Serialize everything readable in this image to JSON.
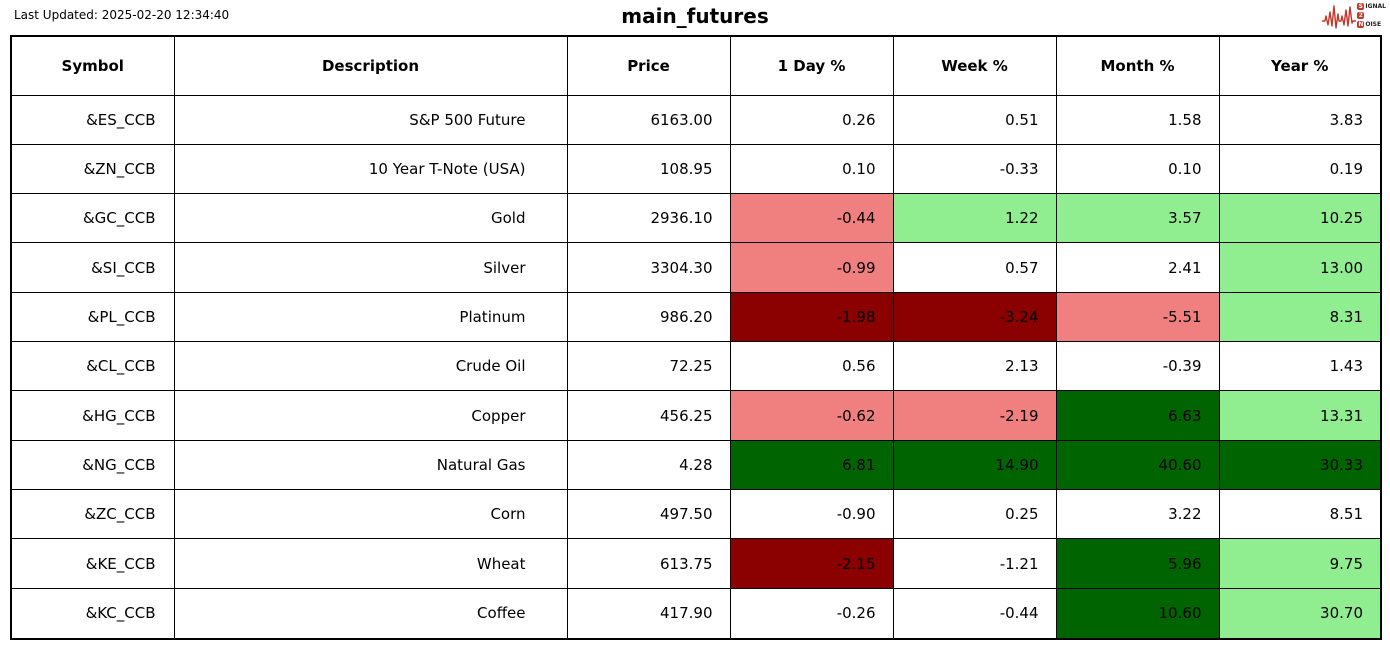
{
  "page": {
    "last_updated": "Last Updated: 2025-02-20 12:34:40",
    "title": "main_futures"
  },
  "logo": {
    "line1_initial": "S",
    "line1_rest": "IGNAL",
    "line2_initial": "2",
    "line2_rest": "",
    "line3_initial": "N",
    "line3_rest": "OISE",
    "accent_color": "#c0392b"
  },
  "chart_data": {
    "type": "table",
    "title": "main_futures",
    "columns": [
      "Symbol",
      "Description",
      "Price",
      "1 Day %",
      "Week %",
      "Month %",
      "Year %"
    ],
    "cell_colors": {
      "white": "#ffffff",
      "light_red": "#f08080",
      "light_green": "#90ee90",
      "dark_red": "#8b0000",
      "dark_green": "#006400"
    },
    "rows": [
      {
        "symbol": "&ES_CCB",
        "description": "S&P 500 Future",
        "price": "6163.00",
        "pcts": [
          {
            "v": "0.26",
            "c": "white"
          },
          {
            "v": "0.51",
            "c": "white"
          },
          {
            "v": "1.58",
            "c": "white"
          },
          {
            "v": "3.83",
            "c": "white"
          }
        ]
      },
      {
        "symbol": "&ZN_CCB",
        "description": "10 Year T-Note (USA)",
        "price": "108.95",
        "pcts": [
          {
            "v": "0.10",
            "c": "white"
          },
          {
            "v": "-0.33",
            "c": "white"
          },
          {
            "v": "0.10",
            "c": "white"
          },
          {
            "v": "0.19",
            "c": "white"
          }
        ]
      },
      {
        "symbol": "&GC_CCB",
        "description": "Gold",
        "price": "2936.10",
        "pcts": [
          {
            "v": "-0.44",
            "c": "light_red"
          },
          {
            "v": "1.22",
            "c": "light_green"
          },
          {
            "v": "3.57",
            "c": "light_green"
          },
          {
            "v": "10.25",
            "c": "light_green"
          }
        ]
      },
      {
        "symbol": "&SI_CCB",
        "description": "Silver",
        "price": "3304.30",
        "pcts": [
          {
            "v": "-0.99",
            "c": "light_red"
          },
          {
            "v": "0.57",
            "c": "white"
          },
          {
            "v": "2.41",
            "c": "white"
          },
          {
            "v": "13.00",
            "c": "light_green"
          }
        ]
      },
      {
        "symbol": "&PL_CCB",
        "description": "Platinum",
        "price": "986.20",
        "pcts": [
          {
            "v": "-1.98",
            "c": "dark_red"
          },
          {
            "v": "-3.24",
            "c": "dark_red"
          },
          {
            "v": "-5.51",
            "c": "light_red"
          },
          {
            "v": "8.31",
            "c": "light_green"
          }
        ]
      },
      {
        "symbol": "&CL_CCB",
        "description": "Crude Oil",
        "price": "72.25",
        "pcts": [
          {
            "v": "0.56",
            "c": "white"
          },
          {
            "v": "2.13",
            "c": "white"
          },
          {
            "v": "-0.39",
            "c": "white"
          },
          {
            "v": "1.43",
            "c": "white"
          }
        ]
      },
      {
        "symbol": "&HG_CCB",
        "description": "Copper",
        "price": "456.25",
        "pcts": [
          {
            "v": "-0.62",
            "c": "light_red"
          },
          {
            "v": "-2.19",
            "c": "light_red"
          },
          {
            "v": "6.63",
            "c": "dark_green"
          },
          {
            "v": "13.31",
            "c": "light_green"
          }
        ]
      },
      {
        "symbol": "&NG_CCB",
        "description": "Natural Gas",
        "price": "4.28",
        "pcts": [
          {
            "v": "6.81",
            "c": "dark_green"
          },
          {
            "v": "14.90",
            "c": "dark_green"
          },
          {
            "v": "40.60",
            "c": "dark_green"
          },
          {
            "v": "30.33",
            "c": "dark_green"
          }
        ]
      },
      {
        "symbol": "&ZC_CCB",
        "description": "Corn",
        "price": "497.50",
        "pcts": [
          {
            "v": "-0.90",
            "c": "white"
          },
          {
            "v": "0.25",
            "c": "white"
          },
          {
            "v": "3.22",
            "c": "white"
          },
          {
            "v": "8.51",
            "c": "white"
          }
        ]
      },
      {
        "symbol": "&KE_CCB",
        "description": "Wheat",
        "price": "613.75",
        "pcts": [
          {
            "v": "-2.15",
            "c": "dark_red"
          },
          {
            "v": "-1.21",
            "c": "white"
          },
          {
            "v": "5.96",
            "c": "dark_green"
          },
          {
            "v": "9.75",
            "c": "light_green"
          }
        ]
      },
      {
        "symbol": "&KC_CCB",
        "description": "Coffee",
        "price": "417.90",
        "pcts": [
          {
            "v": "-0.26",
            "c": "white"
          },
          {
            "v": "-0.44",
            "c": "white"
          },
          {
            "v": "10.60",
            "c": "dark_green"
          },
          {
            "v": "30.70",
            "c": "light_green"
          }
        ]
      }
    ]
  }
}
